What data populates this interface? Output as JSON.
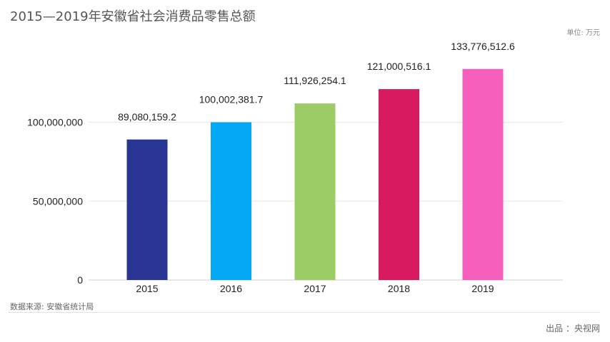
{
  "header": {
    "title": "2015—2019年安徽省社会消费品零售总额",
    "unit": "单位: 万元"
  },
  "footer": {
    "source": "数据来源: 安徽省统计局",
    "publisher": "出品 ：央视网"
  },
  "chart_data": {
    "type": "bar",
    "title": "2015—2019年安徽省社会消费品零售总额",
    "xlabel": "",
    "ylabel": "",
    "categories": [
      "2015",
      "2016",
      "2017",
      "2018",
      "2019"
    ],
    "values": [
      89080159.2,
      100002381.7,
      111926254.1,
      121000516.1,
      133776512.6
    ],
    "value_labels": [
      "89,080,159.2",
      "100,002,381.7",
      "111,926,254.1",
      "121,000,516.1",
      "133,776,512.6"
    ],
    "colors": [
      "#283593",
      "#03a9f4",
      "#9ccc65",
      "#d81b60",
      "#f75fbd"
    ],
    "ylim": [
      0,
      140000000
    ],
    "yticks": [
      0,
      50000000,
      100000000
    ],
    "ytick_labels": [
      "0",
      "50,000,000",
      "100,000,000"
    ],
    "grid": true,
    "legend": "none"
  }
}
